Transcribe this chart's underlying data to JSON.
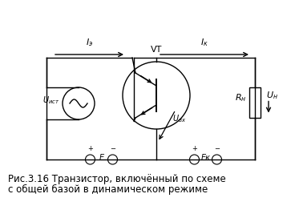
{
  "bg_color": "#ffffff",
  "label_VT": "VT",
  "label_Iz": "Iэ",
  "label_Ik": "Iк",
  "label_Uist": "Uист",
  "label_Uvx": "Uвх",
  "label_Rn": "Rн",
  "label_Un": "Uн",
  "label_E": "E",
  "label_Ek": "Eк",
  "caption_line1": "Рис.3.16 Транзистор, включённый по схеме",
  "caption_line2": "с общей базой в динамическом режиме"
}
